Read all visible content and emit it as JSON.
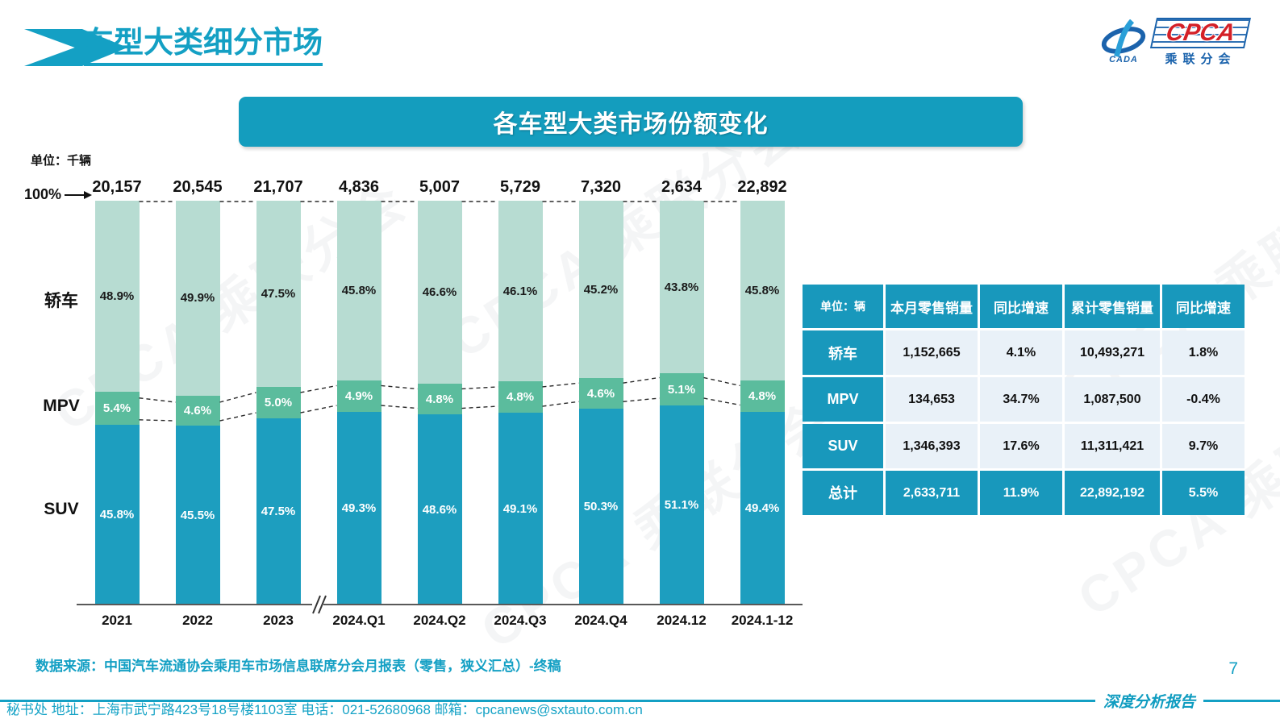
{
  "page": {
    "title": "车型大类细分市场",
    "page_number": "7",
    "report_label": "深度分析报告",
    "source": "数据来源：中国汽车流通协会乘用车市场信息联席分会月报表（零售，狭义汇总）-终稿",
    "address": "秘书处  地址：上海市武宁路423号18号楼1103室  电话：021-52680968  邮箱：cpcanews@sxtauto.com.cn",
    "watermark": "CPCA 乘联分会"
  },
  "logo": {
    "cpca": "CPCA",
    "cada": "CADA",
    "subtitle": "乘联分会"
  },
  "banner": {
    "title": "各车型大类市场份额变化"
  },
  "chart_data": {
    "type": "bar",
    "stacked": true,
    "percent_stack": true,
    "title": "各车型大类市场份额变化",
    "unit_label": "单位：千辆",
    "axis_100_label": "100%",
    "ylim": [
      0,
      100
    ],
    "grid": false,
    "axis_break_after_index": 2,
    "categories": [
      "2021",
      "2022",
      "2023",
      "2024.Q1",
      "2024.Q2",
      "2024.Q3",
      "2024.Q4",
      "2024.12",
      "2024.1-12"
    ],
    "totals": [
      "20,157",
      "20,545",
      "21,707",
      "4,836",
      "5,007",
      "5,729",
      "7,320",
      "2,634",
      "22,892"
    ],
    "series": [
      {
        "name": "轿车",
        "key": "sedan",
        "color": "#b7dcd2",
        "label_color": "#1a1a1a",
        "values": [
          48.9,
          49.9,
          47.5,
          45.8,
          46.6,
          46.1,
          45.2,
          43.8,
          45.8
        ]
      },
      {
        "name": "MPV",
        "key": "mpv",
        "color": "#5bbc9d",
        "label_color": "#ffffff",
        "values": [
          5.4,
          4.6,
          5.0,
          4.9,
          4.8,
          4.8,
          4.6,
          5.1,
          4.8
        ]
      },
      {
        "name": "SUV",
        "key": "suv",
        "color": "#1d9ebf",
        "label_color": "#ffffff",
        "values": [
          45.8,
          45.5,
          47.5,
          49.3,
          48.6,
          49.1,
          50.3,
          51.1,
          49.4
        ]
      }
    ]
  },
  "table": {
    "headers": [
      "单位：辆",
      "本月零售销量",
      "同比增速",
      "累计零售销量",
      "同比增速"
    ],
    "rows": [
      {
        "label": "轿车",
        "cells": [
          "1,152,665",
          "4.1%",
          "10,493,271",
          "1.8%"
        ]
      },
      {
        "label": "MPV",
        "cells": [
          "134,653",
          "34.7%",
          "1,087,500",
          "-0.4%"
        ]
      },
      {
        "label": "SUV",
        "cells": [
          "1,346,393",
          "17.6%",
          "11,311,421",
          "9.7%"
        ]
      },
      {
        "label": "总计",
        "cells": [
          "2,633,711",
          "11.9%",
          "22,892,192",
          "5.5%"
        ]
      }
    ]
  },
  "colors": {
    "accent_teal": "#14a0c4",
    "table_teal": "#1898bc",
    "sedan": "#b7dcd2",
    "mpv": "#5bbc9d",
    "suv": "#1d9ebf",
    "table_cell_bg": "#e9f1f8"
  }
}
